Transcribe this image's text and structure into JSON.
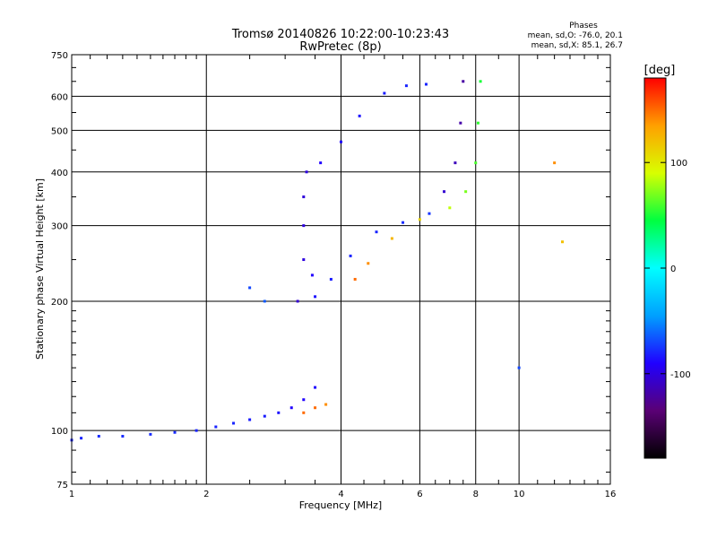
{
  "header": {
    "title_line1": "Tromsø 20140826 10:22:00-10:23:43",
    "title_line2": "RwPretec (8p)",
    "phases_title": "Phases",
    "phases_o": "mean, sd,O: -76.0, 20.1",
    "phases_x": "mean, sd,X:  85.1, 26.7"
  },
  "colorbar": {
    "unit_label": "[deg]",
    "range": [
      -180,
      180
    ],
    "ticks": [
      {
        "value": 100,
        "label": "100"
      },
      {
        "value": 0,
        "label": "0"
      },
      {
        "value": -100,
        "label": "-100"
      }
    ],
    "stops": [
      "#000000",
      "#5a0075",
      "#2000ff",
      "#00a0ff",
      "#00ffff",
      "#00ff40",
      "#d8ff00",
      "#ffa000",
      "#ff0000"
    ]
  },
  "chart_data": {
    "type": "scatter",
    "title": "Tromsø 20140826 10:22:00-10:23:43",
    "subtitle": "RwPretec (8p)",
    "xlabel": "Frequency [MHz]",
    "ylabel": "Stationary phase Virtual Height [km]",
    "x_scale": "log",
    "y_scale": "log",
    "xlim": [
      1,
      16
    ],
    "ylim": [
      75,
      750
    ],
    "x_ticks": [
      1,
      2,
      4,
      6,
      8,
      10,
      16
    ],
    "y_ticks": [
      75,
      100,
      200,
      300,
      400,
      500,
      600,
      750
    ],
    "grid": true,
    "color_encodes": "phase [deg]",
    "series": [
      {
        "points": [
          {
            "x": 1.0,
            "y": 95,
            "c": -80
          },
          {
            "x": 1.05,
            "y": 96,
            "c": -80
          },
          {
            "x": 1.15,
            "y": 97,
            "c": -78
          },
          {
            "x": 1.3,
            "y": 97,
            "c": -78
          },
          {
            "x": 1.5,
            "y": 98,
            "c": -78
          },
          {
            "x": 1.7,
            "y": 99,
            "c": -78
          },
          {
            "x": 1.9,
            "y": 100,
            "c": -80
          },
          {
            "x": 2.1,
            "y": 102,
            "c": -80
          },
          {
            "x": 2.3,
            "y": 104,
            "c": -80
          },
          {
            "x": 2.5,
            "y": 106,
            "c": -82
          },
          {
            "x": 2.7,
            "y": 108,
            "c": -82
          },
          {
            "x": 2.9,
            "y": 110,
            "c": -85
          },
          {
            "x": 3.1,
            "y": 113,
            "c": -90
          },
          {
            "x": 3.3,
            "y": 118,
            "c": -90
          },
          {
            "x": 3.5,
            "y": 126,
            "c": -88
          },
          {
            "x": 3.2,
            "y": 200,
            "c": -105
          },
          {
            "x": 3.3,
            "y": 250,
            "c": -100
          },
          {
            "x": 3.3,
            "y": 300,
            "c": -100
          },
          {
            "x": 3.3,
            "y": 350,
            "c": -102
          },
          {
            "x": 3.35,
            "y": 400,
            "c": -100
          },
          {
            "x": 3.45,
            "y": 230,
            "c": -90
          },
          {
            "x": 3.5,
            "y": 205,
            "c": -85
          },
          {
            "x": 3.8,
            "y": 225,
            "c": -82
          },
          {
            "x": 4.2,
            "y": 255,
            "c": -80
          },
          {
            "x": 4.8,
            "y": 290,
            "c": -80
          },
          {
            "x": 5.5,
            "y": 305,
            "c": -78
          },
          {
            "x": 6.3,
            "y": 320,
            "c": -75
          },
          {
            "x": 3.6,
            "y": 420,
            "c": -90
          },
          {
            "x": 4.0,
            "y": 470,
            "c": -88
          },
          {
            "x": 4.4,
            "y": 540,
            "c": -85
          },
          {
            "x": 5.0,
            "y": 610,
            "c": -82
          },
          {
            "x": 5.6,
            "y": 635,
            "c": -80
          },
          {
            "x": 6.2,
            "y": 640,
            "c": -80
          },
          {
            "x": 6.8,
            "y": 360,
            "c": -105
          },
          {
            "x": 7.2,
            "y": 420,
            "c": -112
          },
          {
            "x": 7.4,
            "y": 520,
            "c": -118
          },
          {
            "x": 7.5,
            "y": 650,
            "c": -120
          },
          {
            "x": 4.3,
            "y": 225,
            "c": 150
          },
          {
            "x": 4.6,
            "y": 245,
            "c": 140
          },
          {
            "x": 5.2,
            "y": 280,
            "c": 125
          },
          {
            "x": 6.0,
            "y": 310,
            "c": 110
          },
          {
            "x": 7.0,
            "y": 330,
            "c": 85
          },
          {
            "x": 7.6,
            "y": 360,
            "c": 70
          },
          {
            "x": 8.0,
            "y": 420,
            "c": 60
          },
          {
            "x": 8.1,
            "y": 520,
            "c": 55
          },
          {
            "x": 8.2,
            "y": 650,
            "c": 50
          },
          {
            "x": 3.3,
            "y": 110,
            "c": 150
          },
          {
            "x": 3.5,
            "y": 113,
            "c": 150
          },
          {
            "x": 3.7,
            "y": 115,
            "c": 140
          },
          {
            "x": 12.0,
            "y": 420,
            "c": 140
          },
          {
            "x": 12.5,
            "y": 275,
            "c": 120
          },
          {
            "x": 10.0,
            "y": 140,
            "c": -70
          },
          {
            "x": 2.5,
            "y": 215,
            "c": -70
          },
          {
            "x": 2.7,
            "y": 200,
            "c": -65
          }
        ]
      }
    ]
  }
}
